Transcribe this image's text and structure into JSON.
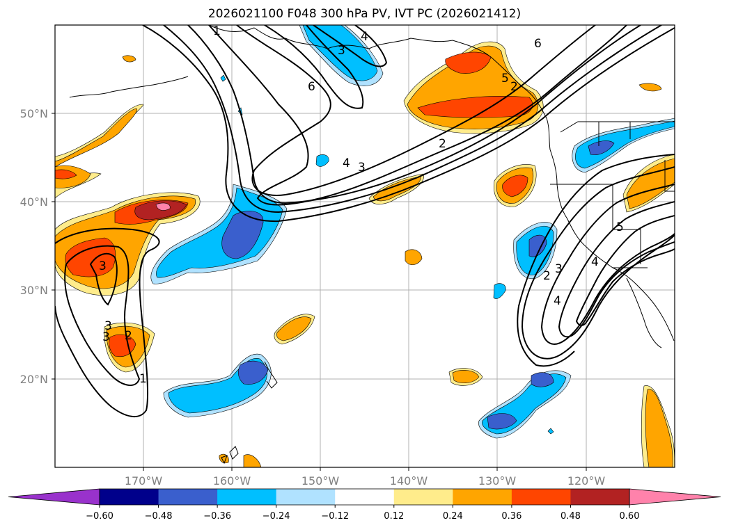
{
  "title": "2026021100 F048 300 hPa PV, IVT PC (2026021412)",
  "lon_labels": [
    "170°W",
    "160°W",
    "150°W",
    "140°W",
    "130°W",
    "120°W"
  ],
  "lat_labels": [
    "50°N",
    "40°N",
    "30°N",
    "20°N"
  ],
  "colorbar": {
    "tick_labels": [
      "−0.60",
      "−0.48",
      "−0.36",
      "−0.24",
      "−0.12",
      "0.12",
      "0.24",
      "0.36",
      "0.48",
      "0.60"
    ],
    "colors": [
      "#9932cc",
      "#00008b",
      "#3a5fcd",
      "#00bfff",
      "#b0e2ff",
      "#ffffff",
      "#ffec8b",
      "#ffa500",
      "#ff4500",
      "#b22222",
      "#ff82ab"
    ]
  },
  "contour_labels": [
    "1",
    "2",
    "3",
    "4",
    "5",
    "6",
    "3",
    "4",
    "6",
    "2",
    "3",
    "4",
    "5",
    "2",
    "3",
    "4",
    "1",
    "2",
    "3",
    "3"
  ],
  "colors": {
    "ocean": "#ffffff",
    "grid": "#b0b0b0",
    "contour": "#000000",
    "axis_text": "#808080"
  }
}
